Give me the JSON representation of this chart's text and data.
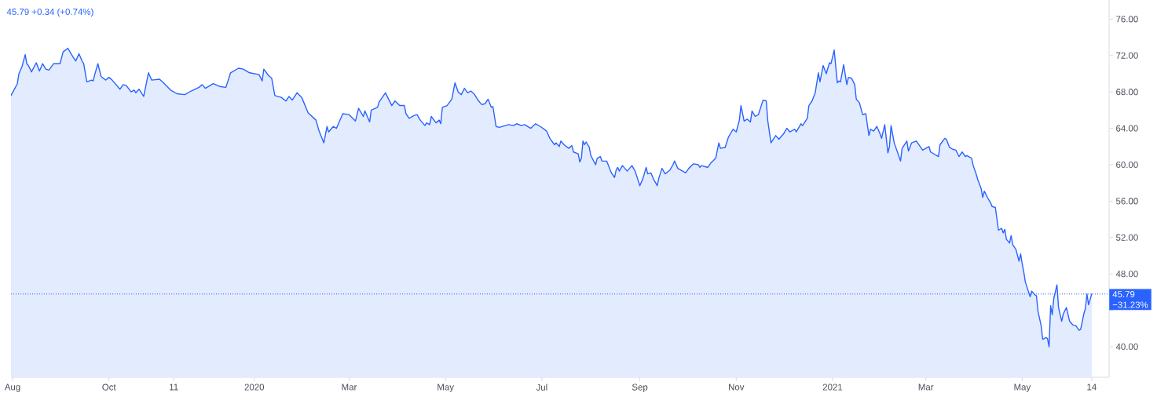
{
  "chart_data": {
    "type": "area",
    "title": "45.79 +0.34 (+0.74%)",
    "x": [
      "2019-07-31",
      "2019-08-04",
      "2019-08-05",
      "2019-08-07",
      "2019-08-09",
      "2019-08-10",
      "2019-08-11",
      "2019-08-13",
      "2019-08-16",
      "2019-08-18",
      "2019-08-20",
      "2019-08-22",
      "2019-08-24",
      "2019-08-27",
      "2019-08-31",
      "2019-09-02",
      "2019-09-05",
      "2019-09-08",
      "2019-09-10",
      "2019-09-12",
      "2019-09-14",
      "2019-09-15",
      "2019-09-17",
      "2019-09-20",
      "2019-09-21",
      "2019-09-22",
      "2019-09-24",
      "2019-09-26",
      "2019-09-29",
      "2019-10-01",
      "2019-10-03",
      "2019-10-08",
      "2019-10-10",
      "2019-10-12",
      "2019-10-15",
      "2019-10-17",
      "2019-10-18",
      "2019-10-20",
      "2019-10-23",
      "2019-10-26",
      "2019-10-28",
      "2019-11-02",
      "2019-11-04",
      "2019-11-09",
      "2019-11-13",
      "2019-11-18",
      "2019-11-22",
      "2019-11-27",
      "2019-11-29",
      "2019-12-01",
      "2019-12-06",
      "2019-12-10",
      "2019-12-14",
      "2019-12-17",
      "2019-12-19",
      "2019-12-22",
      "2019-12-25",
      "2019-12-29",
      "2020-01-04",
      "2020-01-06",
      "2020-01-07",
      "2020-01-10",
      "2020-01-12",
      "2020-01-14",
      "2020-01-18",
      "2020-01-21",
      "2020-01-23",
      "2020-01-25",
      "2020-01-28",
      "2020-01-31",
      "2020-02-04",
      "2020-02-09",
      "2020-02-11",
      "2020-02-14",
      "2020-02-16",
      "2020-02-17",
      "2020-02-20",
      "2020-02-22",
      "2020-02-26",
      "2020-03-01",
      "2020-03-05",
      "2020-03-07",
      "2020-03-10",
      "2020-03-11",
      "2020-03-14",
      "2020-03-15",
      "2020-03-19",
      "2020-03-20",
      "2020-03-24",
      "2020-03-26",
      "2020-03-28",
      "2020-03-30",
      "2020-04-02",
      "2020-04-05",
      "2020-04-06",
      "2020-04-08",
      "2020-04-11",
      "2020-04-13",
      "2020-04-15",
      "2020-04-18",
      "2020-04-19",
      "2020-04-21",
      "2020-04-22",
      "2020-04-25",
      "2020-04-27",
      "2020-04-28",
      "2020-04-29",
      "2020-05-02",
      "2020-05-05",
      "2020-05-07",
      "2020-05-09",
      "2020-05-11",
      "2020-05-13",
      "2020-05-15",
      "2020-05-17",
      "2020-05-19",
      "2020-05-22",
      "2020-05-24",
      "2020-05-26",
      "2020-05-28",
      "2020-05-30",
      "2020-05-31",
      "2020-06-02",
      "2020-06-04",
      "2020-06-10",
      "2020-06-13",
      "2020-06-15",
      "2020-06-18",
      "2020-06-20",
      "2020-06-24",
      "2020-06-27",
      "2020-06-30",
      "2020-07-04",
      "2020-07-06",
      "2020-07-09",
      "2020-07-10",
      "2020-07-12",
      "2020-07-13",
      "2020-07-15",
      "2020-07-18",
      "2020-07-20",
      "2020-07-21",
      "2020-07-24",
      "2020-07-25",
      "2020-07-26",
      "2020-07-27",
      "2020-07-28",
      "2020-07-29",
      "2020-07-31",
      "2020-08-01",
      "2020-08-04",
      "2020-08-05",
      "2020-08-07",
      "2020-08-08",
      "2020-08-11",
      "2020-08-14",
      "2020-08-16",
      "2020-08-17",
      "2020-08-18",
      "2020-08-19",
      "2020-08-21",
      "2020-08-24",
      "2020-08-27",
      "2020-08-29",
      "2020-09-01",
      "2020-09-03",
      "2020-09-05",
      "2020-09-06",
      "2020-09-08",
      "2020-09-10",
      "2020-09-12",
      "2020-09-13",
      "2020-09-15",
      "2020-09-17",
      "2020-09-20",
      "2020-09-22",
      "2020-09-23",
      "2020-09-25",
      "2020-09-30",
      "2020-10-02",
      "2020-10-05",
      "2020-10-08",
      "2020-10-09",
      "2020-10-10",
      "2020-10-14",
      "2020-10-16",
      "2020-10-19",
      "2020-10-21",
      "2020-10-22",
      "2020-10-25",
      "2020-10-27",
      "2020-10-30",
      "2020-11-01",
      "2020-11-03",
      "2020-11-04",
      "2020-11-06",
      "2020-11-08",
      "2020-11-10",
      "2020-11-11",
      "2020-11-13",
      "2020-11-15",
      "2020-11-18",
      "2020-11-20",
      "2020-11-21",
      "2020-11-23",
      "2020-11-26",
      "2020-11-28",
      "2020-12-01",
      "2020-12-03",
      "2020-12-05",
      "2020-12-08",
      "2020-12-09",
      "2020-12-12",
      "2020-12-13",
      "2020-12-16",
      "2020-12-17",
      "2020-12-19",
      "2020-12-21",
      "2020-12-23",
      "2020-12-24",
      "2020-12-26",
      "2020-12-28",
      "2020-12-30",
      "2020-12-31",
      "2021-01-02",
      "2021-01-04",
      "2021-01-05",
      "2021-01-06",
      "2021-01-08",
      "2021-01-10",
      "2021-01-11",
      "2021-01-13",
      "2021-01-15",
      "2021-01-16",
      "2021-01-18",
      "2021-01-20",
      "2021-01-22",
      "2021-01-24",
      "2021-01-25",
      "2021-01-27",
      "2021-01-29",
      "2021-01-31",
      "2021-02-01",
      "2021-02-03",
      "2021-02-05",
      "2021-02-06",
      "2021-02-07",
      "2021-02-09",
      "2021-02-12",
      "2021-02-13",
      "2021-02-14",
      "2021-02-17",
      "2021-02-18",
      "2021-02-20",
      "2021-02-23",
      "2021-02-27",
      "2021-03-03",
      "2021-03-04",
      "2021-03-07",
      "2021-03-09",
      "2021-03-10",
      "2021-03-13",
      "2021-03-14",
      "2021-03-16",
      "2021-03-18",
      "2021-03-20",
      "2021-03-22",
      "2021-03-24",
      "2021-03-26",
      "2021-03-27",
      "2021-03-30",
      "2021-03-31",
      "2021-04-02",
      "2021-04-03",
      "2021-04-05",
      "2021-04-06",
      "2021-04-07",
      "2021-04-09",
      "2021-04-11",
      "2021-04-12",
      "2021-04-14",
      "2021-04-16",
      "2021-04-18",
      "2021-04-19",
      "2021-04-20",
      "2021-04-21",
      "2021-04-23",
      "2021-04-24",
      "2021-04-25",
      "2021-04-27",
      "2021-04-29",
      "2021-04-30",
      "2021-05-01",
      "2021-05-02",
      "2021-05-03",
      "2021-05-06",
      "2021-05-07",
      "2021-05-09",
      "2021-05-10",
      "2021-05-11",
      "2021-05-13",
      "2021-05-14",
      "2021-05-16",
      "2021-05-17",
      "2021-05-18",
      "2021-05-19",
      "2021-05-20",
      "2021-05-21",
      "2021-05-23",
      "2021-05-24",
      "2021-05-26",
      "2021-05-27",
      "2021-05-29",
      "2021-05-31",
      "2021-06-02",
      "2021-06-04",
      "2021-06-06",
      "2021-06-07",
      "2021-06-09",
      "2021-06-10",
      "2021-06-11",
      "2021-06-12",
      "2021-06-14"
    ],
    "series": [
      {
        "color": "#2962ff",
        "values": [
          67.6,
          68.9,
          70.0,
          70.8,
          72.1,
          71.1,
          70.9,
          70.2,
          71.2,
          70.3,
          71.1,
          70.5,
          70.4,
          71.1,
          71.1,
          72.4,
          72.8,
          71.9,
          71.4,
          72.2,
          71.4,
          71.1,
          69.1,
          69.3,
          69.2,
          69.9,
          71.1,
          69.7,
          69.3,
          69.6,
          69.3,
          68.3,
          68.8,
          68.7,
          68.0,
          68.2,
          67.9,
          68.3,
          67.5,
          70.1,
          69.3,
          69.4,
          69.1,
          68.2,
          67.8,
          67.7,
          68.1,
          68.5,
          68.8,
          68.4,
          68.9,
          68.6,
          68.5,
          70.1,
          70.3,
          70.6,
          70.5,
          70.1,
          69.9,
          69.2,
          70.5,
          69.8,
          69.5,
          67.6,
          67.4,
          67.0,
          67.5,
          67.1,
          67.9,
          67.4,
          65.7,
          64.9,
          63.7,
          62.4,
          64.2,
          63.6,
          64.2,
          64.0,
          65.6,
          65.5,
          64.8,
          66.2,
          65.3,
          65.9,
          64.7,
          66.0,
          66.3,
          66.9,
          67.9,
          67.2,
          66.5,
          67.0,
          66.5,
          66.5,
          65.6,
          65.1,
          65.4,
          65.5,
          64.9,
          64.3,
          64.6,
          64.4,
          65.3,
          64.6,
          64.9,
          64.5,
          66.3,
          66.5,
          67.2,
          69.0,
          68.0,
          67.7,
          68.4,
          67.9,
          68.1,
          67.8,
          67.0,
          66.6,
          66.7,
          67.2,
          66.3,
          66.4,
          64.2,
          64.1,
          64.4,
          64.3,
          64.5,
          64.3,
          64.4,
          64.0,
          64.5,
          64.2,
          63.7,
          62.9,
          62.2,
          62.4,
          62.0,
          62.6,
          62.2,
          61.8,
          62.1,
          61.4,
          61.2,
          60.3,
          60.7,
          62.6,
          62.2,
          62.5,
          61.9,
          61.0,
          60.0,
          60.7,
          60.9,
          60.4,
          60.4,
          59.1,
          58.6,
          59.4,
          59.7,
          59.3,
          59.9,
          59.3,
          59.9,
          59.3,
          57.7,
          58.5,
          59.7,
          59.0,
          59.1,
          58.3,
          57.7,
          58.5,
          59.6,
          59.0,
          59.4,
          60.0,
          60.4,
          59.6,
          59.1,
          59.6,
          60.1,
          60.0,
          59.7,
          59.9,
          59.7,
          60.2,
          60.7,
          62.4,
          61.8,
          61.9,
          63.0,
          63.9,
          63.6,
          64.9,
          66.5,
          64.8,
          65.0,
          64.7,
          65.9,
          65.3,
          65.5,
          67.1,
          67.0,
          64.8,
          62.4,
          63.2,
          62.8,
          63.4,
          64.0,
          63.6,
          63.9,
          63.6,
          64.5,
          64.3,
          65.1,
          66.5,
          67.0,
          67.9,
          70.1,
          69.1,
          70.9,
          70.0,
          71.2,
          71.1,
          72.6,
          69.0,
          69.2,
          69.1,
          71.0,
          68.8,
          69.6,
          69.5,
          68.8,
          67.2,
          66.8,
          65.5,
          65.6,
          63.2,
          63.9,
          63.7,
          64.2,
          63.4,
          62.9,
          64.4,
          61.3,
          62.0,
          64.3,
          62.4,
          60.9,
          60.4,
          61.8,
          62.6,
          61.5,
          62.4,
          62.6,
          61.6,
          62.0,
          61.4,
          61.1,
          60.9,
          62.2,
          62.9,
          62.8,
          61.9,
          61.7,
          61.6,
          60.9,
          61.4,
          60.9,
          61.0,
          60.7,
          59.9,
          58.9,
          58.3,
          57.4,
          56.4,
          57.1,
          56.4,
          55.8,
          55.4,
          55.3,
          52.8,
          53.0,
          52.5,
          52.9,
          51.8,
          51.4,
          52.2,
          51.2,
          50.7,
          49.4,
          50.2,
          49.1,
          48.2,
          47.1,
          45.5,
          46.1,
          45.7,
          45.6,
          43.9,
          42.3,
          40.8,
          41.0,
          40.9,
          40.0,
          44.5,
          43.5,
          45.3,
          46.8,
          44.3,
          42.8,
          43.6,
          44.3,
          42.8,
          42.4,
          42.3,
          41.8,
          41.9,
          43.6,
          44.2,
          45.8,
          44.6,
          45.79
        ]
      }
    ],
    "xlim": [
      "2019-07-31",
      "2021-06-25"
    ],
    "xticks": [
      {
        "value": "2019-08-01",
        "label": "Aug"
      },
      {
        "value": "2019-10-01",
        "label": "Oct"
      },
      {
        "value": "2019-11-11",
        "label": "11"
      },
      {
        "value": "2020-01-01",
        "label": "2020"
      },
      {
        "value": "2020-03-01",
        "label": "Mar"
      },
      {
        "value": "2020-05-01",
        "label": "May"
      },
      {
        "value": "2020-07-01",
        "label": "Jul"
      },
      {
        "value": "2020-09-01",
        "label": "Sep"
      },
      {
        "value": "2020-11-01",
        "label": "Nov"
      },
      {
        "value": "2021-01-01",
        "label": "2021"
      },
      {
        "value": "2021-03-01",
        "label": "Mar"
      },
      {
        "value": "2021-05-01",
        "label": "May"
      },
      {
        "value": "2021-06-14",
        "label": "14"
      }
    ],
    "ylim": [
      36.64,
      78.1
    ],
    "yticks": [
      {
        "value": 40,
        "label": "40.00"
      },
      {
        "value": 44,
        "label": null
      },
      {
        "value": 48,
        "label": "48.00"
      },
      {
        "value": 52,
        "label": "52.00"
      },
      {
        "value": 56,
        "label": "56.00"
      },
      {
        "value": 60,
        "label": "60.00"
      },
      {
        "value": 64,
        "label": "64.00"
      },
      {
        "value": 68,
        "label": "68.00"
      },
      {
        "value": 72,
        "label": "72.00"
      },
      {
        "value": 76,
        "label": "76.00"
      }
    ],
    "ref_lines": [
      {
        "axis": "y",
        "value": 45.79,
        "label": "45.79",
        "color": "#2962ff",
        "line_style": "dotted"
      }
    ],
    "annotations": [
      "−31.23%"
    ]
  }
}
